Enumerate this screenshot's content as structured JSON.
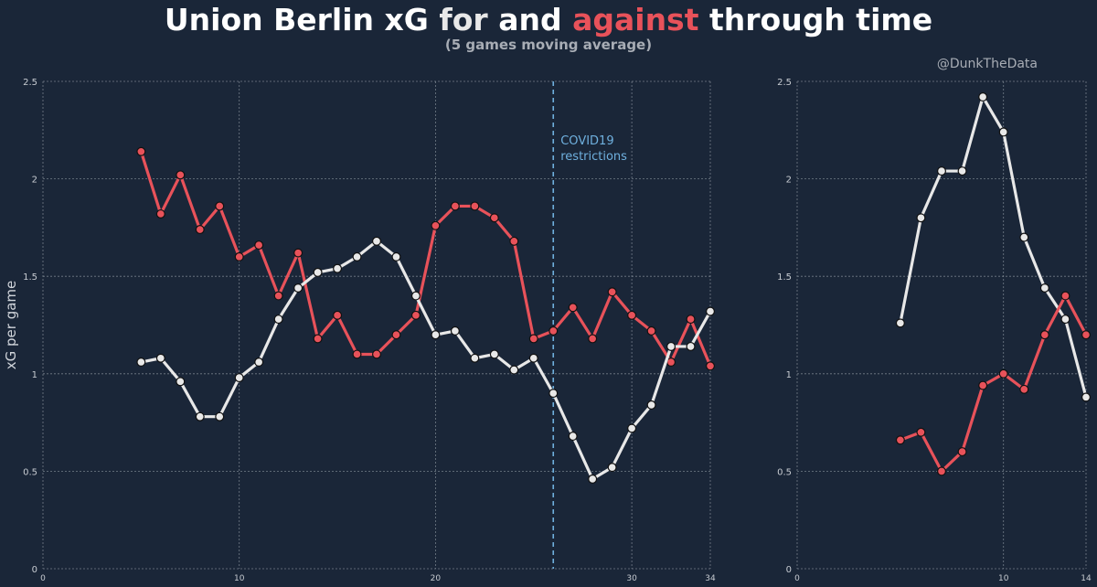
{
  "header": {
    "title_part1": "Union Berlin xG",
    "title_for": "for",
    "title_and": "and",
    "title_against": "against",
    "title_part2": "through time",
    "subtitle": "(5 games moving average)",
    "watermark": "@DunkTheData"
  },
  "colors": {
    "background": "#1a2638",
    "for": "#e8e8e8",
    "against": "#e8525a",
    "covid_line": "#6fb0de",
    "grid": "#8a939e"
  },
  "chart_data": [
    {
      "type": "line",
      "ylabel": "xG per game",
      "xlim": [
        0,
        34
      ],
      "ylim": [
        0,
        2.5
      ],
      "xticks": [
        0,
        10,
        20,
        30,
        34
      ],
      "xtick_labels": [
        "0",
        "10",
        "20",
        "30",
        "34"
      ],
      "yticks": [
        0,
        0.5,
        1,
        1.5,
        2,
        2.5
      ],
      "ytick_labels": [
        "0",
        "0.5",
        "1",
        "1.5",
        "2",
        "2.5"
      ],
      "grid": true,
      "annotation": {
        "x": 26,
        "text_line1": "COVID19",
        "text_line2": " restrictions"
      },
      "series": [
        {
          "key": "against",
          "x": [
            5,
            6,
            7,
            8,
            9,
            10,
            11,
            12,
            13,
            14,
            15,
            16,
            17,
            18,
            19,
            20,
            21,
            22,
            23,
            24,
            25,
            26,
            27,
            28,
            29,
            30,
            31,
            32,
            33,
            34
          ],
          "values": [
            2.14,
            1.82,
            2.02,
            1.74,
            1.86,
            1.6,
            1.66,
            1.4,
            1.62,
            1.18,
            1.3,
            1.1,
            1.1,
            1.2,
            1.3,
            1.76,
            1.86,
            1.86,
            1.8,
            1.68,
            1.18,
            1.22,
            1.34,
            1.18,
            1.42,
            1.3,
            1.22,
            1.06,
            1.28,
            1.04
          ]
        },
        {
          "key": "for",
          "x": [
            5,
            6,
            7,
            8,
            9,
            10,
            11,
            12,
            13,
            14,
            15,
            16,
            17,
            18,
            19,
            20,
            21,
            22,
            23,
            24,
            25,
            26,
            27,
            28,
            29,
            30,
            31,
            32,
            33,
            34
          ],
          "values": [
            1.06,
            1.08,
            0.96,
            0.78,
            0.78,
            0.98,
            1.06,
            1.28,
            1.44,
            1.52,
            1.54,
            1.6,
            1.68,
            1.6,
            1.4,
            1.2,
            1.22,
            1.08,
            1.1,
            1.02,
            1.08,
            0.9,
            0.68,
            0.46,
            0.52,
            0.72,
            0.84,
            1.14,
            1.14,
            1.32
          ]
        }
      ]
    },
    {
      "type": "line",
      "xlim": [
        0,
        14
      ],
      "ylim": [
        0,
        2.5
      ],
      "xticks": [
        0,
        10,
        14
      ],
      "xtick_labels": [
        "0",
        "10",
        "14"
      ],
      "yticks": [
        0,
        0.5,
        1,
        1.5,
        2,
        2.5
      ],
      "ytick_labels": [
        "0",
        "0.5",
        "1",
        "1.5",
        "2",
        "2.5"
      ],
      "grid": true,
      "series": [
        {
          "key": "for",
          "x": [
            5,
            6,
            7,
            8,
            9,
            10,
            11,
            12,
            13,
            14
          ],
          "values": [
            1.26,
            1.8,
            2.04,
            2.04,
            2.42,
            2.24,
            1.7,
            1.44,
            1.28,
            0.88
          ]
        },
        {
          "key": "against",
          "x": [
            5,
            6,
            7,
            8,
            9,
            10,
            11,
            12,
            13,
            14
          ],
          "values": [
            0.66,
            0.7,
            0.5,
            0.6,
            0.94,
            1.0,
            0.92,
            1.2,
            1.4,
            1.2
          ]
        }
      ]
    }
  ]
}
